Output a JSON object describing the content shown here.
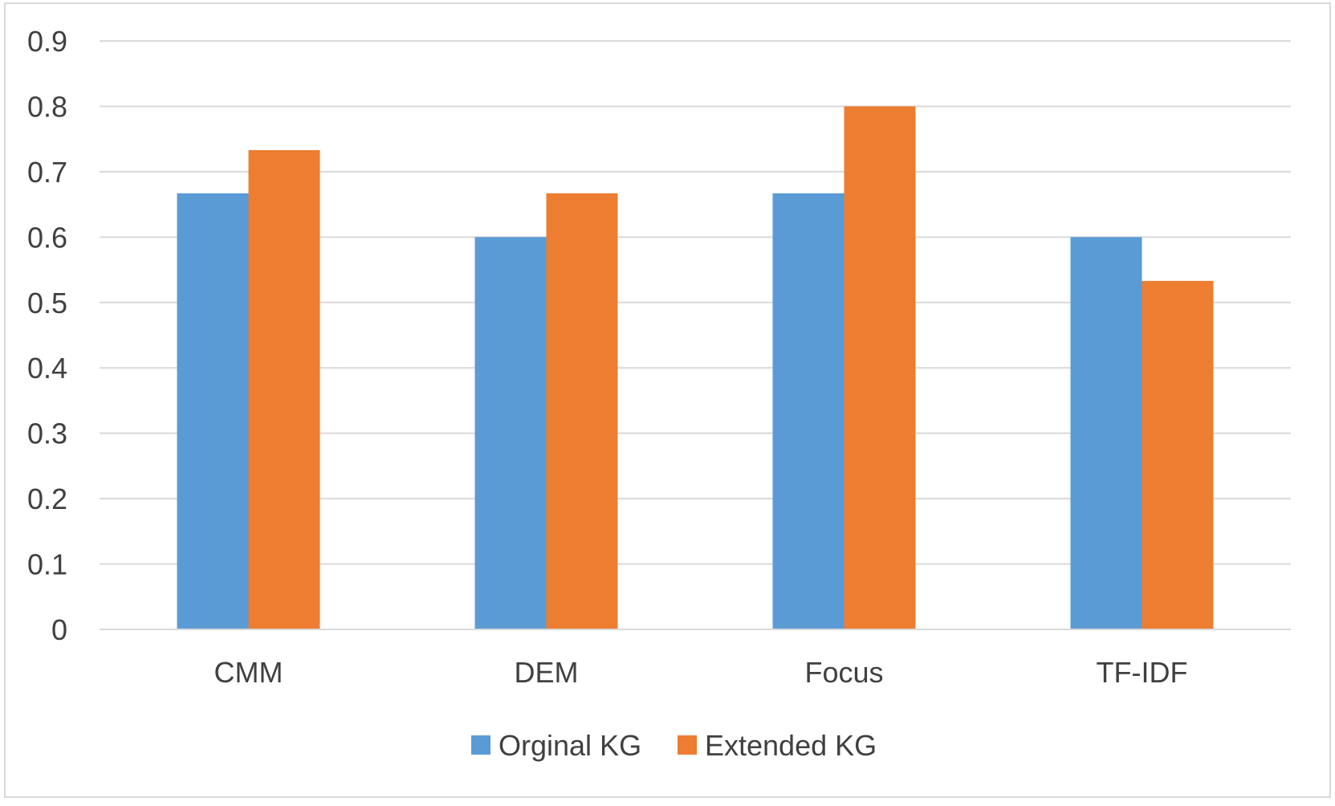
{
  "chart_data": {
    "type": "bar",
    "title": "",
    "xlabel": "",
    "ylabel": "",
    "categories": [
      "CMM",
      "DEM",
      "Focus",
      "TF-IDF"
    ],
    "series": [
      {
        "name": "Orginal KG",
        "color": "#5B9BD5",
        "values": [
          0.667,
          0.6,
          0.667,
          0.6
        ]
      },
      {
        "name": "Extended KG",
        "color": "#ED7D31",
        "values": [
          0.733,
          0.667,
          0.8,
          0.533
        ]
      }
    ],
    "ylim": [
      0,
      0.9
    ],
    "yticks": [
      "0",
      "0.1",
      "0.2",
      "0.3",
      "0.4",
      "0.5",
      "0.6",
      "0.7",
      "0.8",
      "0.9"
    ],
    "grid": true,
    "legend_position": "bottom"
  }
}
